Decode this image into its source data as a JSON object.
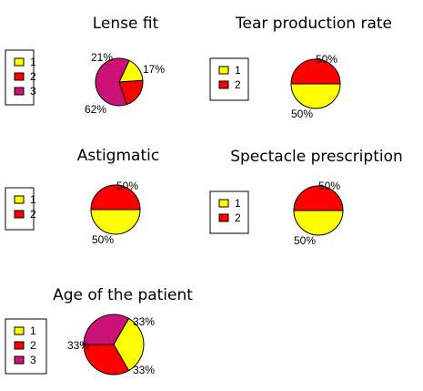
{
  "chart_data": [
    {
      "type": "pie",
      "title": "Lense fit",
      "legend": [
        "1",
        "2",
        "3"
      ],
      "colors": [
        "#ffff00",
        "#ff0000",
        "#cc1177"
      ],
      "values": [
        17,
        21,
        62
      ],
      "labels": [
        "17%",
        "21%",
        "62%"
      ]
    },
    {
      "type": "pie",
      "title": "Tear production rate",
      "legend": [
        "1",
        "2"
      ],
      "colors": [
        "#ffff00",
        "#ff0000"
      ],
      "values": [
        50,
        50
      ],
      "labels": [
        "50%",
        "50%"
      ]
    },
    {
      "type": "pie",
      "title": "Astigmatic",
      "legend": [
        "1",
        "2"
      ],
      "colors": [
        "#ffff00",
        "#ff0000"
      ],
      "values": [
        50,
        50
      ],
      "labels": [
        "50%",
        "50%"
      ]
    },
    {
      "type": "pie",
      "title": "Spectacle prescription",
      "legend": [
        "1",
        "2"
      ],
      "colors": [
        "#ffff00",
        "#ff0000"
      ],
      "values": [
        50,
        50
      ],
      "labels": [
        "50%",
        "50%"
      ]
    },
    {
      "type": "pie",
      "title": "Age of the patient",
      "legend": [
        "1",
        "2",
        "3"
      ],
      "colors": [
        "#ffff00",
        "#ff0000",
        "#cc1177"
      ],
      "values": [
        33,
        33,
        33
      ],
      "labels": [
        "33%",
        "33%",
        "33%"
      ]
    }
  ]
}
